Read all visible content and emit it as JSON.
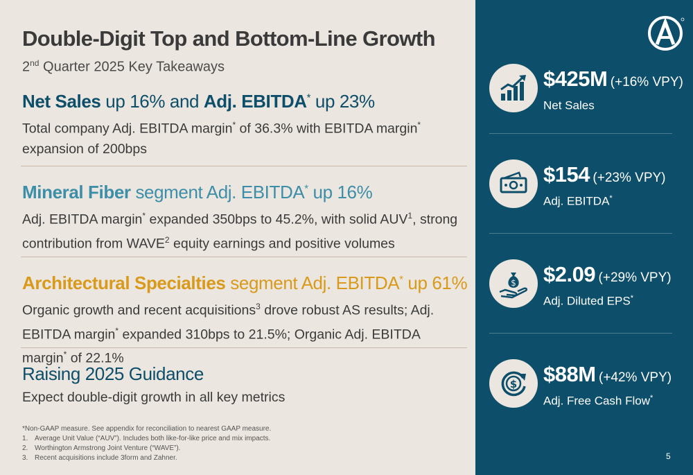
{
  "title": "Double-Digit Top and Bottom-Line Growth",
  "subtitle": {
    "pre": "2",
    "sup": "nd",
    "post": " Quarter 2025 Key Takeaways"
  },
  "sections": [
    {
      "head": [
        {
          "t": "Net Sales",
          "bold": true
        },
        {
          "t": " up 16% and "
        },
        {
          "t": "Adj. EBITDA",
          "bold": true
        },
        {
          "t": "*",
          "sup": true
        },
        {
          "t": " up 23%"
        }
      ],
      "body": [
        {
          "t": "Total company Adj. EBITDA margin"
        },
        {
          "t": "*",
          "sup": true
        },
        {
          "t": " of 36.3% with EBITDA margin"
        },
        {
          "t": "*",
          "sup": true
        },
        {
          "t": " expansion of 200bps"
        }
      ]
    },
    {
      "head": [
        {
          "t": "Mineral Fiber",
          "bold": true
        },
        {
          "t": " segment Adj. EBITDA"
        },
        {
          "t": "*",
          "sup": true
        },
        {
          "t": " up 16%"
        }
      ],
      "body": [
        {
          "t": "Adj. EBITDA margin"
        },
        {
          "t": "*",
          "sup": true
        },
        {
          "t": " expanded 350bps to 45.2%, with solid AUV"
        },
        {
          "t": "1",
          "sup": true
        },
        {
          "t": ", strong contribution from WAVE"
        },
        {
          "t": "2",
          "sup": true
        },
        {
          "t": " equity earnings and positive volumes"
        }
      ]
    },
    {
      "head": [
        {
          "t": "Architectural Specialties",
          "bold": true
        },
        {
          "t": " segment Adj. EBITDA"
        },
        {
          "t": "*",
          "sup": true
        },
        {
          "t": " up 61%"
        }
      ],
      "body": [
        {
          "t": "Organic growth and recent acquisitions"
        },
        {
          "t": "3",
          "sup": true
        },
        {
          "t": " drove robust AS results; Adj. EBITDA margin"
        },
        {
          "t": "*",
          "sup": true
        },
        {
          "t": " expanded 310bps to 21.5%; Organic Adj. EBITDA margin"
        },
        {
          "t": "*",
          "sup": true
        },
        {
          "t": " of 22.1%"
        }
      ]
    },
    {
      "head": [
        {
          "t": "Raising 2025 Guidance"
        }
      ],
      "body": [
        {
          "t": "Expect double-digit growth in all key metrics"
        }
      ]
    }
  ],
  "footnotes": {
    "note": "*Non-GAAP measure. See appendix for reconciliation to nearest GAAP measure.",
    "items": [
      {
        "n": "1.",
        "t": "Average Unit Value (“AUV”). Includes both like-for-like price and mix impacts."
      },
      {
        "n": "2.",
        "t": "Worthington Armstrong Joint Venture (“WAVE”)."
      },
      {
        "n": "3.",
        "t": "Recent acquisitions include 3form and Zahner."
      }
    ]
  },
  "metrics": [
    {
      "value": "$425M",
      "change": "(+16% VPY)",
      "label": "Net Sales",
      "label_sup": "",
      "icon": "growth-chart-icon"
    },
    {
      "value": "$154",
      "change": "(+23% VPY)",
      "label": "Adj. EBITDA",
      "label_sup": "*",
      "icon": "cash-stack-icon"
    },
    {
      "value": "$2.09",
      "change": "(+29% VPY)",
      "label": "Adj. Diluted EPS",
      "label_sup": "*",
      "icon": "money-bag-hand-icon"
    },
    {
      "value": "$88M",
      "change": "(+42% VPY)",
      "label": "Adj. Free Cash Flow",
      "label_sup": "*",
      "icon": "cash-cycle-icon"
    }
  ],
  "page_number": "5",
  "colors": {
    "navy": "#0d4e6a",
    "teal": "#3d8ea8",
    "gold": "#d99a1c",
    "background": "#ebe6df"
  }
}
